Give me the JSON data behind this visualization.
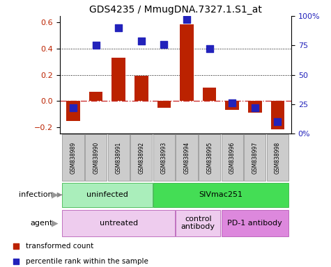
{
  "title": "GDS4235 / MmugDNA.7327.1.S1_at",
  "samples": [
    "GSM838989",
    "GSM838990",
    "GSM838991",
    "GSM838992",
    "GSM838993",
    "GSM838994",
    "GSM838995",
    "GSM838996",
    "GSM838997",
    "GSM838998"
  ],
  "transformed_counts": [
    -0.155,
    0.07,
    0.33,
    0.19,
    -0.055,
    0.585,
    0.1,
    -0.07,
    -0.09,
    -0.22
  ],
  "percentile_ranks": [
    22,
    75,
    90,
    79,
    76,
    97,
    72,
    26,
    22,
    10
  ],
  "ylim": [
    -0.25,
    0.65
  ],
  "y2lim": [
    0,
    100
  ],
  "yticks": [
    -0.2,
    0.0,
    0.2,
    0.4,
    0.6
  ],
  "y2ticks": [
    0,
    25,
    50,
    75,
    100
  ],
  "y2tick_labels": [
    "0%",
    "25",
    "50",
    "75",
    "100%"
  ],
  "bar_color": "#bb2200",
  "dot_color": "#2222bb",
  "dot_size": 55,
  "infection_labels": [
    {
      "text": "uninfected",
      "start": 0,
      "end": 3,
      "color": "#aaeebb"
    },
    {
      "text": "SIVmac251",
      "start": 4,
      "end": 9,
      "color": "#44dd55"
    }
  ],
  "infection_edge_color": "#22aa33",
  "agent_spans": [
    {
      "start": 0,
      "end": 4,
      "text": "untreated",
      "color": "#eeccee"
    },
    {
      "start": 5,
      "end": 6,
      "text": "control\nantibody",
      "color": "#eeccee"
    },
    {
      "start": 7,
      "end": 9,
      "text": "PD-1 antibody",
      "color": "#dd88dd"
    }
  ],
  "agent_edge_color": "#aa44aa",
  "grid_dotted_values": [
    0.2,
    0.4
  ],
  "zero_line_color": "#cc3333",
  "legend_items": [
    "transformed count",
    "percentile rank within the sample"
  ]
}
